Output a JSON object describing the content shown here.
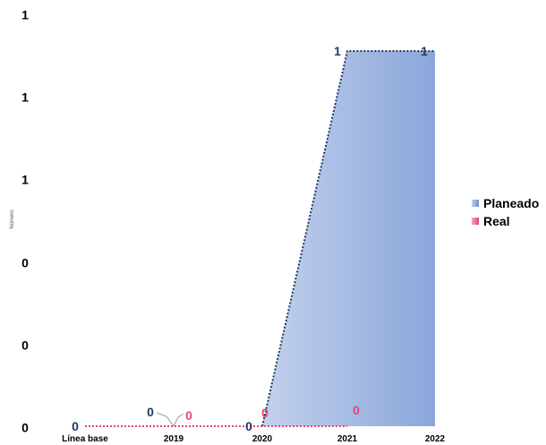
{
  "chart_data": {
    "type": "area",
    "ylabel": "Número",
    "categories": [
      "Línea base",
      "2019",
      "2020",
      "2021",
      "2022"
    ],
    "y_tick_labels": [
      "0",
      "0",
      "0",
      "1",
      "1",
      "1"
    ],
    "ylim": [
      0,
      1.2
    ],
    "series": [
      {
        "name": "Planeado",
        "values": [
          null,
          null,
          0,
          1.2,
          1.2
        ],
        "data_labels": [
          "0",
          "0",
          "0",
          "1",
          "1"
        ],
        "color": "#8EA9DB"
      },
      {
        "name": "Real",
        "values": [
          0,
          0,
          0,
          0,
          null
        ],
        "data_labels": [
          "",
          "0",
          "0",
          "0",
          ""
        ],
        "color": "#E0457B"
      }
    ],
    "legend_position": "right",
    "grid": false
  }
}
